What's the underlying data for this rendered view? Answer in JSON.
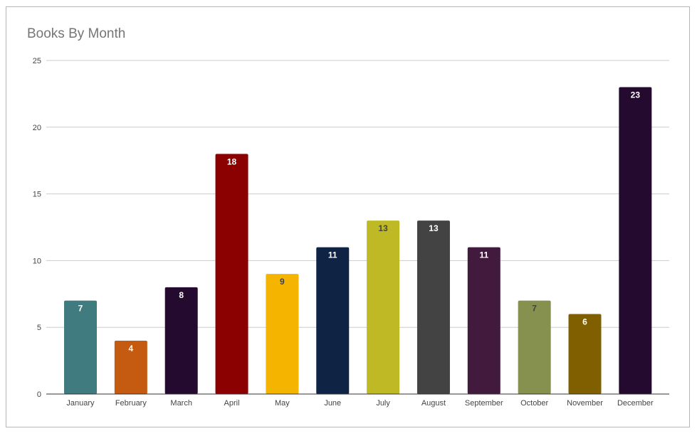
{
  "chart_data": {
    "type": "bar",
    "title": "Books By Month",
    "xlabel": "",
    "ylabel": "",
    "ylim": [
      0,
      25
    ],
    "yticks": [
      0,
      5,
      10,
      15,
      20,
      25
    ],
    "grid": true,
    "legend": "none",
    "categories": [
      "January",
      "February",
      "March",
      "April",
      "May",
      "June",
      "July",
      "August",
      "September",
      "October",
      "November",
      "December"
    ],
    "values": [
      7,
      4,
      8,
      18,
      9,
      11,
      13,
      13,
      11,
      7,
      6,
      23
    ],
    "bar_colors": [
      "#3f7b7f",
      "#c55a11",
      "#240a2e",
      "#8b0000",
      "#f4b400",
      "#0f2344",
      "#c0b926",
      "#434343",
      "#421a3d",
      "#86904f",
      "#7f5f00",
      "#240a2e"
    ],
    "label_colors": [
      "#ffffff",
      "#ffffff",
      "#ffffff",
      "#ffffff",
      "#444444",
      "#ffffff",
      "#444444",
      "#ffffff",
      "#ffffff",
      "#444444",
      "#ffffff",
      "#ffffff"
    ]
  }
}
